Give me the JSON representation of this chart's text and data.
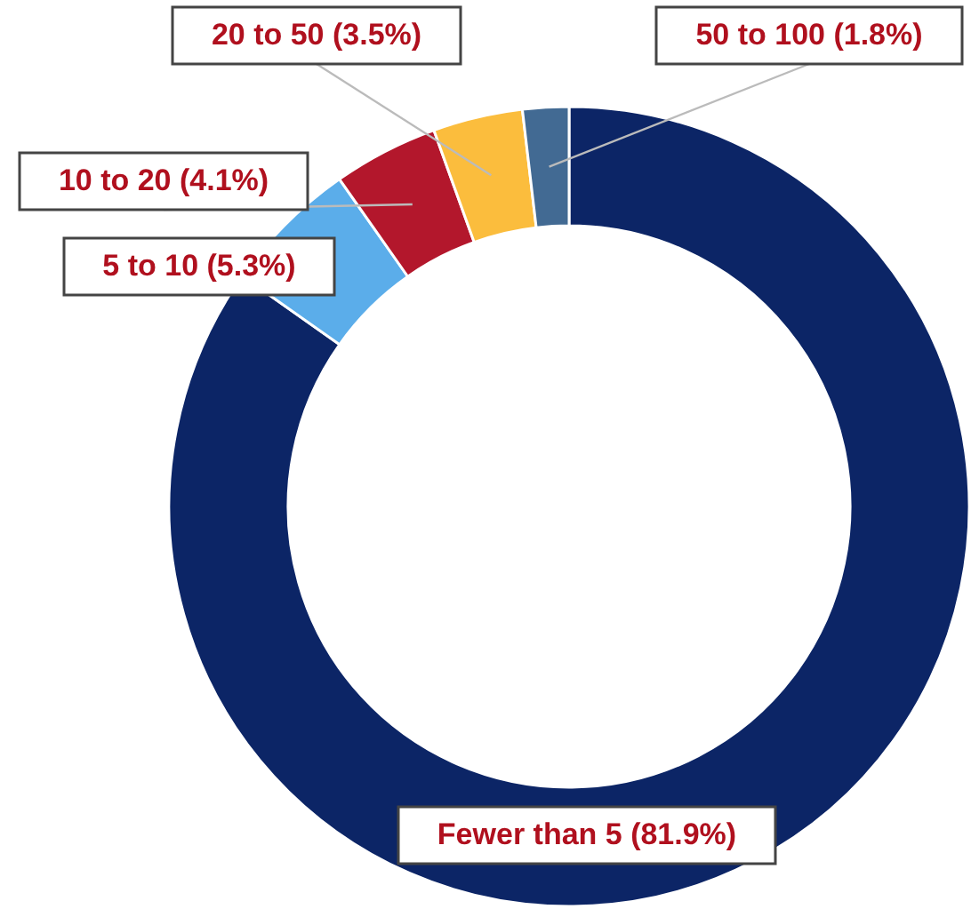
{
  "chart_data": {
    "type": "donut",
    "categories": [
      "Fewer than 5",
      "5 to 10",
      "10 to 20",
      "20 to 50",
      "50 to 100"
    ],
    "values": [
      81.9,
      5.3,
      4.1,
      3.5,
      1.8
    ],
    "colors": [
      "#0c2566",
      "#5badea",
      "#b3172c",
      "#fbbd3d",
      "#426a93"
    ],
    "value_labels": [
      "(81.9%)",
      "(5.3%)",
      "(4.1%)",
      "(3.5%)",
      "(1.8%)"
    ]
  }
}
